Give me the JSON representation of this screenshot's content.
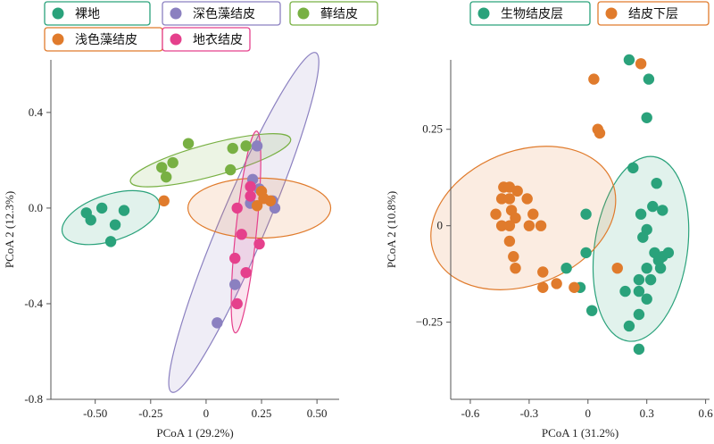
{
  "chart_data": [
    {
      "type": "scatter",
      "xlabel": "PCoA 1 (29.2%)",
      "ylabel": "PCoA 2 (12.3%)",
      "xlim": [
        -0.7,
        0.6
      ],
      "ylim": [
        -0.8,
        0.62
      ],
      "x_ticks": [
        "-0.50",
        "-0.25",
        "0",
        "0.25",
        "0.50"
      ],
      "x_tick_values": [
        -0.5,
        -0.25,
        0,
        0.25,
        0.5
      ],
      "y_ticks": [
        "0.4",
        "0.0",
        "-0.4",
        "-0.8"
      ],
      "y_tick_values": [
        0.4,
        0.0,
        -0.4,
        -0.8
      ],
      "legend_position": "top",
      "series": [
        {
          "name": "裸地",
          "color": "#2aa27b",
          "points": [
            [
              -0.54,
              -0.02
            ],
            [
              -0.47,
              0.0
            ],
            [
              -0.52,
              -0.05
            ],
            [
              -0.37,
              -0.01
            ],
            [
              -0.41,
              -0.07
            ],
            [
              -0.43,
              -0.14
            ]
          ],
          "ellipse": {
            "cx": -0.43,
            "cy": -0.04,
            "rx": 0.22,
            "ry": 0.1,
            "angle_deg": -18
          }
        },
        {
          "name": "深色藻结皮",
          "color": "#8b80c0",
          "points": [
            [
              0.23,
              0.26
            ],
            [
              0.21,
              0.12
            ],
            [
              0.3,
              0.03
            ],
            [
              0.24,
              0.08
            ],
            [
              0.2,
              0.02
            ],
            [
              0.31,
              0.0
            ],
            [
              0.13,
              -0.32
            ],
            [
              0.05,
              -0.48
            ]
          ],
          "ellipse": {
            "cx": 0.17,
            "cy": -0.06,
            "rx": 0.8,
            "ry": 0.1,
            "angle_deg": -67
          }
        },
        {
          "name": "藓结皮",
          "color": "#78b043",
          "points": [
            [
              -0.2,
              0.17
            ],
            [
              -0.15,
              0.19
            ],
            [
              -0.08,
              0.27
            ],
            [
              -0.18,
              0.13
            ],
            [
              0.12,
              0.25
            ],
            [
              0.11,
              0.16
            ],
            [
              0.18,
              0.26
            ]
          ],
          "ellipse": {
            "cx": 0.02,
            "cy": 0.2,
            "rx": 0.36,
            "ry": 0.07,
            "angle_deg": -15
          }
        },
        {
          "name": "浅色藻结皮",
          "color": "#e07b2c",
          "points": [
            [
              -0.19,
              0.03
            ],
            [
              0.25,
              0.07
            ],
            [
              0.26,
              0.04
            ],
            [
              0.23,
              0.01
            ],
            [
              0.29,
              0.03
            ]
          ],
          "ellipse": {
            "cx": 0.24,
            "cy": 0.0,
            "rx": 0.31,
            "ry": 0.13,
            "angle_deg": 0
          }
        },
        {
          "name": "地衣结皮",
          "color": "#e5408c",
          "points": [
            [
              0.2,
              0.09
            ],
            [
              0.2,
              0.05
            ],
            [
              0.14,
              0.0
            ],
            [
              0.16,
              -0.11
            ],
            [
              0.24,
              -0.15
            ],
            [
              0.13,
              -0.21
            ],
            [
              0.18,
              -0.27
            ],
            [
              0.14,
              -0.4
            ]
          ],
          "ellipse": {
            "cx": 0.18,
            "cy": -0.1,
            "rx": 0.44,
            "ry": 0.045,
            "angle_deg": -84
          }
        }
      ]
    },
    {
      "type": "scatter",
      "xlabel": "PCoA 1 (31.2%)",
      "ylabel": "PCoA 2 (10.8%)",
      "xlim": [
        -0.7,
        0.62
      ],
      "ylim": [
        -0.45,
        0.43
      ],
      "x_ticks": [
        "-0.6",
        "-0.3",
        "0",
        "0.3",
        "0.6"
      ],
      "x_tick_values": [
        -0.6,
        -0.3,
        0,
        0.3,
        0.6
      ],
      "y_ticks": [
        "0.25",
        "0",
        "−0.25"
      ],
      "y_tick_values": [
        0.25,
        0,
        -0.25
      ],
      "legend_position": "top",
      "series": [
        {
          "name": "生物结皮层",
          "color": "#2aa27b",
          "points": [
            [
              0.21,
              0.43
            ],
            [
              0.31,
              0.38
            ],
            [
              0.3,
              0.28
            ],
            [
              0.23,
              0.15
            ],
            [
              0.35,
              0.11
            ],
            [
              0.33,
              0.05
            ],
            [
              0.38,
              0.04
            ],
            [
              0.27,
              0.03
            ],
            [
              0.3,
              -0.01
            ],
            [
              -0.01,
              0.03
            ],
            [
              0.28,
              -0.03
            ],
            [
              0.34,
              -0.07
            ],
            [
              0.38,
              -0.08
            ],
            [
              0.41,
              -0.07
            ],
            [
              0.36,
              -0.09
            ],
            [
              -0.01,
              -0.07
            ],
            [
              0.37,
              -0.11
            ],
            [
              0.3,
              -0.11
            ],
            [
              0.26,
              -0.14
            ],
            [
              0.32,
              -0.14
            ],
            [
              -0.11,
              -0.11
            ],
            [
              -0.04,
              -0.16
            ],
            [
              0.19,
              -0.17
            ],
            [
              0.26,
              -0.17
            ],
            [
              0.3,
              -0.19
            ],
            [
              0.02,
              -0.22
            ],
            [
              0.21,
              -0.26
            ],
            [
              0.26,
              -0.23
            ],
            [
              0.26,
              -0.32
            ]
          ],
          "ellipse": {
            "cx": 0.27,
            "cy": -0.06,
            "rx": 0.32,
            "ry": 0.16,
            "angle_deg": -82
          }
        },
        {
          "name": "结皮下层",
          "color": "#e07b2c",
          "points": [
            [
              0.27,
              0.42
            ],
            [
              0.03,
              0.38
            ],
            [
              0.05,
              0.25
            ],
            [
              0.06,
              0.24
            ],
            [
              -0.43,
              0.1
            ],
            [
              -0.4,
              0.1
            ],
            [
              -0.36,
              0.09
            ],
            [
              -0.44,
              0.07
            ],
            [
              -0.4,
              0.07
            ],
            [
              -0.31,
              0.07
            ],
            [
              -0.47,
              0.03
            ],
            [
              -0.39,
              0.04
            ],
            [
              -0.37,
              0.02
            ],
            [
              -0.28,
              0.03
            ],
            [
              -0.44,
              0.0
            ],
            [
              -0.4,
              0.0
            ],
            [
              -0.3,
              0.0
            ],
            [
              -0.24,
              0.0
            ],
            [
              -0.4,
              -0.04
            ],
            [
              -0.38,
              -0.08
            ],
            [
              -0.37,
              -0.11
            ],
            [
              -0.23,
              -0.12
            ],
            [
              -0.16,
              -0.15
            ],
            [
              -0.23,
              -0.16
            ],
            [
              -0.07,
              -0.16
            ],
            [
              0.15,
              -0.11
            ]
          ],
          "ellipse": {
            "cx": -0.33,
            "cy": 0.02,
            "rx": 0.33,
            "ry": 0.23,
            "angle_deg": -22
          }
        }
      ]
    }
  ]
}
